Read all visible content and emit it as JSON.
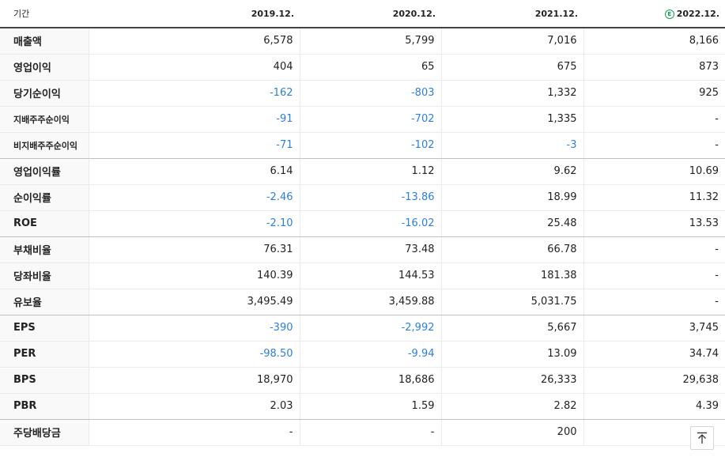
{
  "table": {
    "header_label": "기간",
    "estimate_marker": "E",
    "periods": [
      "2019.12.",
      "2020.12.",
      "2021.12.",
      "2022.12."
    ],
    "rows": [
      {
        "label": "매출액",
        "values": [
          "6,578",
          "5,799",
          "7,016",
          "8,166"
        ]
      },
      {
        "label": "영업이익",
        "values": [
          "404",
          "65",
          "675",
          "873"
        ]
      },
      {
        "label": "당기순이익",
        "values": [
          "-162",
          "-803",
          "1,332",
          "925"
        ]
      },
      {
        "label": "지배주주순이익",
        "values": [
          "-91",
          "-702",
          "1,335",
          "-"
        ]
      },
      {
        "label": "비지배주주순이익",
        "values": [
          "-71",
          "-102",
          "-3",
          "-"
        ]
      },
      {
        "label": "영업이익률",
        "values": [
          "6.14",
          "1.12",
          "9.62",
          "10.69"
        ]
      },
      {
        "label": "순이익률",
        "values": [
          "-2.46",
          "-13.86",
          "18.99",
          "11.32"
        ]
      },
      {
        "label": "ROE",
        "values": [
          "-2.10",
          "-16.02",
          "25.48",
          "13.53"
        ]
      },
      {
        "label": "부채비율",
        "values": [
          "76.31",
          "73.48",
          "66.78",
          "-"
        ]
      },
      {
        "label": "당좌비율",
        "values": [
          "140.39",
          "144.53",
          "181.38",
          "-"
        ]
      },
      {
        "label": "유보율",
        "values": [
          "3,495.49",
          "3,459.88",
          "5,031.75",
          "-"
        ]
      },
      {
        "label": "EPS",
        "values": [
          "-390",
          "-2,992",
          "5,667",
          "3,745"
        ]
      },
      {
        "label": "PER",
        "values": [
          "-98.50",
          "-9.94",
          "13.09",
          "34.74"
        ]
      },
      {
        "label": "BPS",
        "values": [
          "18,970",
          "18,686",
          "26,333",
          "29,638"
        ]
      },
      {
        "label": "PBR",
        "values": [
          "2.03",
          "1.59",
          "2.82",
          "4.39"
        ]
      },
      {
        "label": "주당배당금",
        "values": [
          "-",
          "-",
          "200",
          ""
        ]
      }
    ]
  },
  "colors": {
    "negative": "#2c7fe0",
    "estimate": "#18a058"
  },
  "scroll_top_icon": "arrow-up-to-top-icon"
}
